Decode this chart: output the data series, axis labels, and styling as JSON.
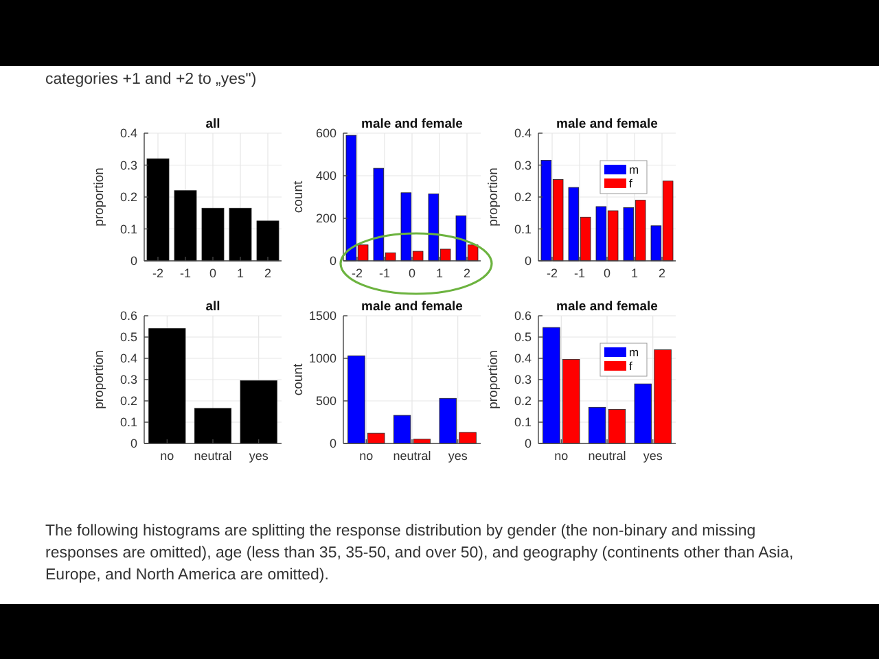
{
  "chart_data": [
    {
      "type": "other",
      "annotations": [
        "categories +1 and +2 to „yes\")"
      ]
    },
    {
      "type": "bar",
      "title": "all",
      "ylabel": "proportion",
      "categories": [
        "-2",
        "-1",
        "0",
        "1",
        "2"
      ],
      "series": [
        {
          "color": "#000000",
          "values": [
            0.32,
            0.22,
            0.165,
            0.165,
            0.125
          ]
        }
      ],
      "ylim": [
        0,
        0.4
      ],
      "yticks": [
        0,
        0.1,
        0.2,
        0.3,
        0.4
      ],
      "grid": true
    },
    {
      "type": "bar",
      "title": "male and female",
      "ylabel": "count",
      "categories": [
        "-2",
        "-1",
        "0",
        "1",
        "2"
      ],
      "series": [
        {
          "color": "#0000ff",
          "values": [
            590,
            435,
            320,
            315,
            212
          ]
        },
        {
          "color": "#ff0000",
          "values": [
            75,
            38,
            45,
            55,
            75
          ]
        }
      ],
      "ylim": [
        0,
        600
      ],
      "yticks": [
        0,
        200,
        400,
        600
      ],
      "grid": true
    },
    {
      "type": "bar",
      "title": "male and female",
      "ylabel": "proportion",
      "categories": [
        "-2",
        "-1",
        "0",
        "1",
        "2"
      ],
      "series": [
        {
          "name": "m",
          "color": "#0000ff",
          "values": [
            0.315,
            0.23,
            0.17,
            0.167,
            0.11
          ]
        },
        {
          "name": "f",
          "color": "#ff0000",
          "values": [
            0.255,
            0.137,
            0.157,
            0.19,
            0.25
          ]
        }
      ],
      "ylim": [
        0,
        0.4
      ],
      "yticks": [
        0,
        0.1,
        0.2,
        0.3,
        0.4
      ],
      "grid": true,
      "legend": "top right"
    },
    {
      "type": "bar",
      "title": "all",
      "ylabel": "proportion",
      "categories": [
        "no",
        "neutral",
        "yes"
      ],
      "series": [
        {
          "color": "#000000",
          "values": [
            0.54,
            0.165,
            0.295
          ]
        }
      ],
      "ylim": [
        0,
        0.6
      ],
      "yticks": [
        0,
        0.1,
        0.2,
        0.3,
        0.4,
        0.5,
        0.6
      ],
      "grid": true
    },
    {
      "type": "bar",
      "title": "male and female",
      "ylabel": "count",
      "categories": [
        "no",
        "neutral",
        "yes"
      ],
      "series": [
        {
          "color": "#0000ff",
          "values": [
            1030,
            330,
            530
          ]
        },
        {
          "color": "#ff0000",
          "values": [
            120,
            50,
            130
          ]
        }
      ],
      "ylim": [
        0,
        1500
      ],
      "yticks": [
        0,
        500,
        1000,
        1500
      ],
      "grid": true
    },
    {
      "type": "bar",
      "title": "male and female",
      "ylabel": "proportion",
      "categories": [
        "no",
        "neutral",
        "yes"
      ],
      "series": [
        {
          "name": "m",
          "color": "#0000ff",
          "values": [
            0.545,
            0.17,
            0.28
          ]
        },
        {
          "name": "f",
          "color": "#ff0000",
          "values": [
            0.395,
            0.16,
            0.44
          ]
        }
      ],
      "ylim": [
        0,
        0.6
      ],
      "yticks": [
        0,
        0.1,
        0.2,
        0.3,
        0.4,
        0.5,
        0.6
      ],
      "grid": true,
      "legend": "top right"
    },
    {
      "type": "other",
      "annotations": [
        "The following histograms are splitting the response distribution by gender (the non-binary and missing responses are omitted), age (less than 35, 35-50, and over 50), and geography (continents other than Asia, Europe, and North America are omitted)."
      ]
    }
  ]
}
